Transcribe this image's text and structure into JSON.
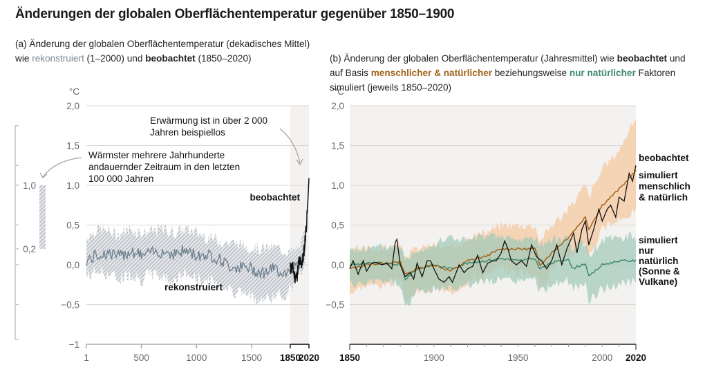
{
  "title": "Änderungen der globalen Oberflächentemperatur gegenüber 1850–1900",
  "panel_a": {
    "subtitle_parts": [
      {
        "text": "(a) Änderung der globalen Oberflächentemperatur (dekadisches Mittel) wie ",
        "style": "normal"
      },
      {
        "text": "rekonstruiert",
        "style": "grey"
      },
      {
        "text": " (1–2000) und ",
        "style": "normal"
      },
      {
        "text": "beobachtet",
        "style": "bold"
      },
      {
        "text": " (1850–2020)",
        "style": "normal"
      }
    ],
    "unit": "°C",
    "annotation_top": [
      "Erwärmung ist in über 2 000",
      "Jahren beispiellos"
    ],
    "annotation_mid": [
      "Wärmster mehrere Jahrhunderte",
      "andauernder Zeitraum in den letzten",
      "100 000 Jahren"
    ],
    "label_observed": "beobachtet",
    "label_reconstructed": "rekonstruiert",
    "side_bar": {
      "low": 0.2,
      "high": 1.0,
      "low_label": "0,2",
      "high_label": "1,0"
    }
  },
  "panel_b": {
    "subtitle_parts": [
      {
        "text": "(b) Änderung der globalen Oberflächentemperatur (Jahresmittel) wie ",
        "style": "normal"
      },
      {
        "text": "beobachtet",
        "style": "bold"
      },
      {
        "text": " und auf Basis ",
        "style": "normal"
      },
      {
        "text": "menschlicher & natürlicher",
        "style": "brown"
      },
      {
        "text": " beziehungsweise ",
        "style": "normal"
      },
      {
        "text": "nur natürlicher",
        "style": "green"
      },
      {
        "text": " Faktoren simuliert (jeweils 1850–2020)",
        "style": "normal"
      }
    ],
    "unit": "°C",
    "label_observed": "beobachtet",
    "label_human": [
      "simuliert",
      "menschlich",
      "& natürlich"
    ],
    "label_natural": [
      "simuliert",
      "nur",
      "natürlich",
      "(Sonne &",
      "Vulkane)"
    ]
  },
  "colors": {
    "observed": "#111111",
    "reconstructed": "#6f8290",
    "reconstructed_band": "#b9bec6",
    "human": "#a0641e",
    "human_band": "#f5cfae",
    "natural": "#3e8a70",
    "natural_band": "#9fc9b8",
    "shade": "#f4f2f0",
    "grid": "#dcd8d4"
  },
  "chart_data": [
    {
      "type": "area",
      "name": "panel_a",
      "xlabel": "",
      "ylabel": "°C",
      "xlim": [
        1,
        2020
      ],
      "ylim": [
        -1,
        2
      ],
      "yticks": [
        {
          "v": 2,
          "l": "2,0"
        },
        {
          "v": 1.5,
          "l": "1,5"
        },
        {
          "v": 1,
          "l": "1,0"
        },
        {
          "v": 0.5,
          "l": "0,5"
        },
        {
          "v": 0,
          "l": "0,0"
        },
        {
          "v": -0.5,
          "l": "−0,5"
        },
        {
          "v": -1,
          "l": "−1"
        }
      ],
      "xticks": [
        {
          "v": 1,
          "l": "1"
        },
        {
          "v": 500,
          "l": "500"
        },
        {
          "v": 1000,
          "l": "1000"
        },
        {
          "v": 1500,
          "l": "1500"
        },
        {
          "v": 1850,
          "l": "1850",
          "bold": true
        },
        {
          "v": 2020,
          "l": "2020",
          "bold": true
        }
      ],
      "shaded_range": [
        1850,
        2020
      ],
      "series": [
        {
          "name": "rekonstruiert",
          "x": [
            1,
            100,
            200,
            300,
            400,
            500,
            600,
            700,
            800,
            900,
            1000,
            1100,
            1200,
            1300,
            1400,
            1500,
            1600,
            1700,
            1800,
            1850,
            1900,
            1950,
            2000
          ],
          "y": [
            0.05,
            0.12,
            0.15,
            0.1,
            0.18,
            0.12,
            0.15,
            0.17,
            0.14,
            0.18,
            0.12,
            0.13,
            0.08,
            -0.02,
            -0.03,
            -0.05,
            -0.1,
            -0.05,
            -0.1,
            -0.05,
            -0.02,
            0.05,
            0.35
          ],
          "lower": [
            -0.15,
            -0.08,
            -0.12,
            -0.18,
            -0.1,
            -0.18,
            -0.12,
            -0.15,
            -0.2,
            -0.12,
            -0.18,
            -0.2,
            -0.25,
            -0.3,
            -0.35,
            -0.4,
            -0.45,
            -0.4,
            -0.38,
            -0.3,
            -0.2,
            -0.1,
            0.2
          ],
          "upper": [
            0.35,
            0.45,
            0.42,
            0.38,
            0.45,
            0.4,
            0.42,
            0.45,
            0.4,
            0.45,
            0.4,
            0.35,
            0.3,
            0.28,
            0.25,
            0.22,
            0.2,
            0.22,
            0.18,
            0.15,
            0.18,
            0.25,
            0.45
          ]
        },
        {
          "name": "beobachtet",
          "x": [
            1850,
            1870,
            1890,
            1910,
            1930,
            1950,
            1970,
            1980,
            1990,
            2000,
            2010,
            2020
          ],
          "y": [
            -0.05,
            -0.02,
            -0.15,
            -0.15,
            0.05,
            0.0,
            0.1,
            0.25,
            0.4,
            0.55,
            0.8,
            1.09
          ]
        }
      ],
      "annotations": [
        "Erwärmung ist in über 2 000 Jahren beispiellos",
        "Wärmster mehrere Jahrhunderte andauernder Zeitraum in den letzten 100 000 Jahren"
      ],
      "side_range": [
        0.2,
        1.0
      ]
    },
    {
      "type": "line",
      "name": "panel_b",
      "xlabel": "",
      "ylabel": "°C",
      "xlim": [
        1850,
        2020
      ],
      "ylim": [
        -1,
        2
      ],
      "yticks": [
        {
          "v": 2,
          "l": "2,0"
        },
        {
          "v": 1.5,
          "l": "1,5"
        },
        {
          "v": 1,
          "l": "1,0"
        },
        {
          "v": 0.5,
          "l": "0,5"
        },
        {
          "v": 0,
          "l": "0,0"
        },
        {
          "v": -0.5,
          "l": "−0,5"
        }
      ],
      "xticks": [
        {
          "v": 1850,
          "l": "1850",
          "bold": true
        },
        {
          "v": 1900,
          "l": "1900"
        },
        {
          "v": 1950,
          "l": "1950"
        },
        {
          "v": 2000,
          "l": "2000"
        },
        {
          "v": 2020,
          "l": "2020",
          "bold": true
        }
      ],
      "series": [
        {
          "name": "simuliert menschlich & natürlich",
          "x": [
            1850,
            1860,
            1870,
            1880,
            1883,
            1890,
            1900,
            1910,
            1920,
            1930,
            1940,
            1950,
            1960,
            1963,
            1970,
            1980,
            1990,
            1992,
            2000,
            2010,
            2020
          ],
          "y": [
            -0.05,
            0.0,
            0.02,
            0.03,
            -0.12,
            -0.05,
            0.0,
            -0.08,
            0.05,
            0.1,
            0.2,
            0.2,
            0.2,
            0.0,
            0.15,
            0.35,
            0.6,
            0.45,
            0.75,
            0.95,
            1.18
          ],
          "lower": [
            -0.35,
            -0.25,
            -0.25,
            -0.2,
            -0.45,
            -0.35,
            -0.3,
            -0.35,
            -0.2,
            -0.15,
            -0.05,
            -0.1,
            -0.1,
            -0.3,
            -0.05,
            0.1,
            0.3,
            0.1,
            0.45,
            0.55,
            0.7
          ],
          "upper": [
            0.15,
            0.2,
            0.2,
            0.25,
            0.1,
            0.2,
            0.25,
            0.2,
            0.35,
            0.4,
            0.5,
            0.5,
            0.5,
            0.3,
            0.5,
            0.7,
            1.0,
            0.85,
            1.2,
            1.45,
            1.85
          ]
        },
        {
          "name": "simuliert nur natürlich (Sonne & Vulkane)",
          "x": [
            1850,
            1860,
            1870,
            1880,
            1883,
            1890,
            1900,
            1910,
            1920,
            1930,
            1940,
            1950,
            1960,
            1963,
            1970,
            1980,
            1982,
            1990,
            1992,
            2000,
            2010,
            2020
          ],
          "y": [
            0.0,
            0.02,
            0.02,
            0.0,
            -0.18,
            -0.05,
            0.0,
            -0.05,
            0.02,
            0.05,
            0.08,
            0.05,
            0.08,
            -0.05,
            0.02,
            0.08,
            -0.05,
            0.02,
            -0.15,
            0.0,
            0.05,
            0.05
          ],
          "lower": [
            -0.25,
            -0.25,
            -0.2,
            -0.25,
            -0.55,
            -0.35,
            -0.3,
            -0.3,
            -0.25,
            -0.2,
            -0.2,
            -0.2,
            -0.2,
            -0.35,
            -0.25,
            -0.2,
            -0.3,
            -0.25,
            -0.45,
            -0.3,
            -0.25,
            -0.2
          ],
          "upper": [
            0.2,
            0.2,
            0.22,
            0.25,
            0.05,
            0.2,
            0.25,
            0.35,
            0.3,
            0.35,
            0.35,
            0.3,
            0.35,
            0.25,
            0.3,
            0.35,
            0.2,
            0.3,
            0.1,
            0.3,
            0.35,
            0.35
          ]
        },
        {
          "name": "beobachtet",
          "x": [
            1850,
            1852,
            1855,
            1858,
            1860,
            1863,
            1866,
            1869,
            1872,
            1875,
            1877,
            1878,
            1880,
            1883,
            1886,
            1888,
            1890,
            1893,
            1896,
            1898,
            1900,
            1903,
            1906,
            1909,
            1911,
            1915,
            1918,
            1920,
            1923,
            1926,
            1929,
            1932,
            1935,
            1937,
            1940,
            1942,
            1944,
            1946,
            1949,
            1952,
            1955,
            1958,
            1961,
            1964,
            1967,
            1970,
            1973,
            1976,
            1979,
            1981,
            1983,
            1985,
            1988,
            1990,
            1992,
            1995,
            1998,
            2000,
            2003,
            2005,
            2008,
            2010,
            2013,
            2016,
            2018,
            2020
          ],
          "y": [
            -0.05,
            0.05,
            -0.12,
            0.05,
            -0.08,
            0.02,
            0.03,
            0.0,
            0.02,
            -0.05,
            0.28,
            0.32,
            0.0,
            -0.15,
            -0.1,
            -0.18,
            0.02,
            -0.15,
            0.05,
            0.05,
            -0.05,
            -0.18,
            -0.22,
            -0.15,
            -0.22,
            0.0,
            -0.1,
            -0.05,
            -0.02,
            0.12,
            -0.1,
            0.02,
            0.05,
            0.05,
            0.15,
            0.3,
            0.2,
            0.05,
            0.0,
            0.05,
            -0.02,
            0.25,
            0.1,
            0.05,
            -0.05,
            0.05,
            0.25,
            0.0,
            0.2,
            0.3,
            0.4,
            0.15,
            0.45,
            0.55,
            0.25,
            0.45,
            0.7,
            0.55,
            0.7,
            0.75,
            0.6,
            0.85,
            0.8,
            1.15,
            1.05,
            1.25
          ]
        }
      ]
    }
  ]
}
